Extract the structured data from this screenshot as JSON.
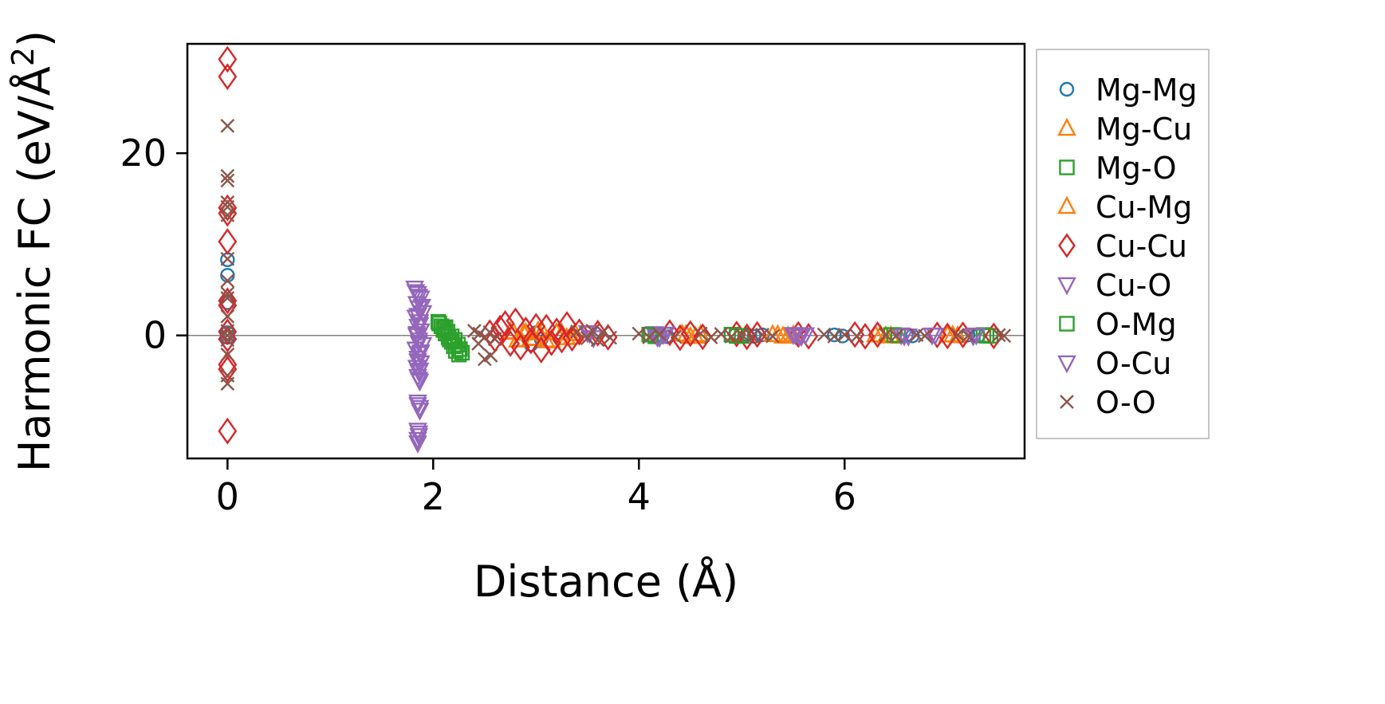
{
  "chart_data": {
    "type": "scatter",
    "title": "",
    "xlabel": "Distance (Å)",
    "ylabel": "Harmonic FC (eV/Å²)",
    "xlim": [
      -0.39,
      7.75
    ],
    "ylim": [
      -13.5,
      32
    ],
    "xticks": [
      0,
      2,
      4,
      6
    ],
    "yticks": [
      0,
      20
    ],
    "grid": false,
    "zero_line": true,
    "zero_line_color": "#808080",
    "axis_color": "#000000",
    "background": "#ffffff",
    "legend_position": "outside-right",
    "legend_border_color": "#b3b3b3",
    "series": [
      {
        "name": "Mg-Mg",
        "marker": "circle",
        "color": "#1f77b4",
        "size": 8,
        "points": [
          [
            0,
            8.3
          ],
          [
            0,
            6.6
          ],
          [
            0,
            3.6
          ],
          [
            0,
            0.3
          ],
          [
            0,
            -0.2
          ],
          [
            2.95,
            -1.0
          ],
          [
            3.0,
            0.3
          ],
          [
            3.05,
            -0.4
          ],
          [
            4.2,
            0.12
          ],
          [
            4.28,
            -0.15
          ],
          [
            5.05,
            0.1
          ],
          [
            5.12,
            -0.1
          ],
          [
            5.2,
            0.06
          ],
          [
            5.9,
            0.06
          ],
          [
            5.98,
            -0.06
          ],
          [
            6.6,
            0.05
          ],
          [
            6.66,
            -0.05
          ],
          [
            7.2,
            0.04
          ],
          [
            7.3,
            -0.04
          ]
        ]
      },
      {
        "name": "Mg-Cu",
        "marker": "triangle-up",
        "color": "#ff7f0e",
        "size": 9,
        "points": [
          [
            2.75,
            0.4
          ],
          [
            2.82,
            -0.5
          ],
          [
            2.88,
            0.25
          ],
          [
            2.95,
            -0.3
          ],
          [
            3.02,
            0.5
          ],
          [
            3.1,
            -0.6
          ],
          [
            3.2,
            0.3
          ],
          [
            3.3,
            -0.25
          ],
          [
            3.38,
            0.2
          ],
          [
            4.42,
            0.15
          ],
          [
            4.5,
            -0.12
          ],
          [
            4.6,
            0.1
          ],
          [
            5.3,
            0.1
          ],
          [
            5.4,
            -0.08
          ],
          [
            5.5,
            0.06
          ],
          [
            6.3,
            0.06
          ],
          [
            6.4,
            -0.05
          ],
          [
            7.0,
            0.05
          ],
          [
            7.1,
            -0.04
          ]
        ]
      },
      {
        "name": "Mg-O",
        "marker": "square",
        "color": "#2ca02c",
        "size": 9,
        "points": [
          [
            2.05,
            1.5
          ],
          [
            2.08,
            1.0
          ],
          [
            2.1,
            0.6
          ],
          [
            2.12,
            0.2
          ],
          [
            2.15,
            -0.2
          ],
          [
            2.18,
            -0.7
          ],
          [
            2.2,
            -1.2
          ],
          [
            2.22,
            -1.7
          ],
          [
            2.25,
            -2.1
          ],
          [
            2.12,
            0.9
          ],
          [
            2.16,
            -0.45
          ],
          [
            4.1,
            0.1
          ],
          [
            4.16,
            -0.1
          ],
          [
            4.9,
            0.08
          ],
          [
            5.0,
            -0.06
          ],
          [
            6.45,
            0.05
          ],
          [
            6.52,
            -0.05
          ],
          [
            7.35,
            0.05
          ],
          [
            7.42,
            -0.04
          ]
        ]
      },
      {
        "name": "Cu-Mg",
        "marker": "triangle-up",
        "color": "#ff7f0e",
        "size": 9,
        "points": [
          [
            2.78,
            0.35
          ],
          [
            2.85,
            -0.45
          ],
          [
            2.9,
            0.3
          ],
          [
            2.98,
            -0.35
          ],
          [
            3.06,
            0.45
          ],
          [
            3.15,
            -0.5
          ],
          [
            3.25,
            0.25
          ],
          [
            3.35,
            -0.2
          ],
          [
            4.46,
            0.12
          ],
          [
            4.55,
            -0.1
          ],
          [
            5.35,
            0.08
          ],
          [
            5.45,
            -0.07
          ],
          [
            6.35,
            0.05
          ],
          [
            6.45,
            -0.05
          ],
          [
            7.05,
            0.04
          ]
        ]
      },
      {
        "name": "Cu-Cu",
        "marker": "diamond",
        "color": "#d62728",
        "size": 11,
        "points": [
          [
            0,
            30.3
          ],
          [
            0,
            28.4
          ],
          [
            0,
            14.0
          ],
          [
            0,
            13.4
          ],
          [
            0,
            10.3
          ],
          [
            0,
            3.8
          ],
          [
            0,
            3.3
          ],
          [
            0,
            0.4
          ],
          [
            0,
            -0.4
          ],
          [
            0,
            -3.2
          ],
          [
            0,
            -3.7
          ],
          [
            0,
            -10.5
          ],
          [
            2.55,
            0.3
          ],
          [
            2.6,
            -0.4
          ],
          [
            2.65,
            0.8
          ],
          [
            2.7,
            1.3
          ],
          [
            2.75,
            -0.9
          ],
          [
            2.8,
            1.6
          ],
          [
            2.85,
            -1.3
          ],
          [
            2.9,
            0.6
          ],
          [
            2.95,
            -0.6
          ],
          [
            3.0,
            1.0
          ],
          [
            3.05,
            -1.6
          ],
          [
            3.1,
            0.9
          ],
          [
            3.15,
            -0.8
          ],
          [
            3.2,
            0.5
          ],
          [
            3.25,
            -0.5
          ],
          [
            3.3,
            1.2
          ],
          [
            3.35,
            -0.3
          ],
          [
            3.42,
            0.4
          ],
          [
            3.6,
            0.25
          ],
          [
            3.7,
            -0.2
          ],
          [
            4.3,
            0.3
          ],
          [
            4.4,
            -0.25
          ],
          [
            4.5,
            0.2
          ],
          [
            4.62,
            -0.15
          ],
          [
            4.95,
            0.15
          ],
          [
            5.05,
            -0.15
          ],
          [
            5.15,
            0.1
          ],
          [
            5.55,
            0.1
          ],
          [
            5.65,
            -0.1
          ],
          [
            6.1,
            0.1
          ],
          [
            6.2,
            -0.1
          ],
          [
            6.32,
            0.08
          ],
          [
            6.9,
            0.06
          ],
          [
            7.0,
            -0.06
          ],
          [
            7.15,
            0.06
          ],
          [
            7.45,
            -0.05
          ]
        ]
      },
      {
        "name": "Cu-O",
        "marker": "triangle-down",
        "color": "#9467bd",
        "size": 9,
        "points": [
          [
            1.82,
            5.2
          ],
          [
            1.85,
            4.6
          ],
          [
            1.88,
            4.1
          ],
          [
            1.84,
            3.5
          ],
          [
            1.86,
            3.0
          ],
          [
            1.9,
            2.5
          ],
          [
            1.83,
            2.0
          ],
          [
            1.87,
            1.5
          ],
          [
            1.85,
            1.0
          ],
          [
            1.88,
            0.5
          ],
          [
            1.84,
            0.0
          ],
          [
            1.86,
            -0.5
          ],
          [
            1.9,
            -1.0
          ],
          [
            1.83,
            -1.5
          ],
          [
            1.87,
            -2.0
          ],
          [
            1.85,
            -2.5
          ],
          [
            1.88,
            -3.0
          ],
          [
            1.84,
            -3.5
          ],
          [
            1.86,
            -4.0
          ],
          [
            1.85,
            -4.5
          ],
          [
            1.87,
            -5.0
          ],
          [
            1.85,
            -7.3
          ],
          [
            1.87,
            -7.9
          ],
          [
            1.85,
            -10.4
          ],
          [
            1.86,
            -11.0
          ],
          [
            1.85,
            -11.8
          ],
          [
            3.5,
            0.3
          ],
          [
            3.56,
            -0.25
          ],
          [
            4.15,
            0.2
          ],
          [
            4.2,
            -0.2
          ],
          [
            4.26,
            0.15
          ],
          [
            5.5,
            0.1
          ],
          [
            5.56,
            -0.1
          ],
          [
            5.62,
            0.08
          ],
          [
            6.55,
            0.06
          ],
          [
            6.62,
            -0.06
          ],
          [
            6.85,
            0.05
          ],
          [
            7.25,
            -0.05
          ]
        ]
      },
      {
        "name": "O-Mg",
        "marker": "square",
        "color": "#2ca02c",
        "size": 9,
        "points": [
          [
            2.06,
            1.3
          ],
          [
            2.1,
            0.8
          ],
          [
            2.14,
            0.4
          ],
          [
            2.18,
            -0.1
          ],
          [
            2.21,
            -0.5
          ],
          [
            2.24,
            -1.0
          ],
          [
            2.26,
            -1.5
          ],
          [
            2.28,
            -1.9
          ],
          [
            4.12,
            0.08
          ],
          [
            4.95,
            -0.06
          ],
          [
            6.48,
            0.05
          ],
          [
            7.38,
            -0.04
          ]
        ]
      },
      {
        "name": "O-Cu",
        "marker": "triangle-down",
        "color": "#9467bd",
        "size": 9,
        "points": [
          [
            1.83,
            4.8
          ],
          [
            1.86,
            4.3
          ],
          [
            1.89,
            3.2
          ],
          [
            1.85,
            2.2
          ],
          [
            1.87,
            1.2
          ],
          [
            1.84,
            0.2
          ],
          [
            1.86,
            -0.8
          ],
          [
            1.88,
            -1.8
          ],
          [
            1.85,
            -2.8
          ],
          [
            1.87,
            -3.8
          ],
          [
            1.86,
            -4.8
          ],
          [
            1.85,
            -7.6
          ],
          [
            1.87,
            -8.2
          ],
          [
            1.86,
            -10.7
          ],
          [
            1.85,
            -11.4
          ],
          [
            3.52,
            0.25
          ],
          [
            4.18,
            -0.18
          ],
          [
            4.24,
            0.12
          ],
          [
            5.52,
            0.09
          ],
          [
            5.58,
            -0.08
          ],
          [
            6.58,
            -0.05
          ],
          [
            6.88,
            0.04
          ],
          [
            7.28,
            0.05
          ]
        ]
      },
      {
        "name": "O-O",
        "marker": "x",
        "color": "#8c564b",
        "size": 8,
        "points": [
          [
            0,
            23.0
          ],
          [
            0,
            17.5
          ],
          [
            0,
            17.0
          ],
          [
            0,
            14.6
          ],
          [
            0,
            14.1
          ],
          [
            0,
            13.2
          ],
          [
            0,
            8.4
          ],
          [
            0,
            6.0
          ],
          [
            0,
            4.6
          ],
          [
            0,
            4.1
          ],
          [
            0,
            2.1
          ],
          [
            0,
            0.5
          ],
          [
            0,
            0.0
          ],
          [
            0,
            -0.5
          ],
          [
            0,
            -2.1
          ],
          [
            0,
            -4.4
          ],
          [
            0,
            -5.3
          ],
          [
            2.4,
            0.5
          ],
          [
            2.45,
            0.2
          ],
          [
            2.5,
            -0.2
          ],
          [
            2.55,
            0.35
          ],
          [
            2.6,
            -0.4
          ],
          [
            2.5,
            -2.6
          ],
          [
            2.56,
            -2.2
          ],
          [
            2.44,
            -0.9
          ],
          [
            3.4,
            0.4
          ],
          [
            3.5,
            -0.3
          ],
          [
            3.55,
            0.5
          ],
          [
            3.6,
            -0.5
          ],
          [
            3.65,
            0.35
          ],
          [
            3.72,
            -0.25
          ],
          [
            4.0,
            0.2
          ],
          [
            4.1,
            -0.2
          ],
          [
            4.2,
            0.15
          ],
          [
            4.35,
            -0.15
          ],
          [
            4.6,
            0.2
          ],
          [
            4.7,
            -0.2
          ],
          [
            4.8,
            0.15
          ],
          [
            4.9,
            -0.12
          ],
          [
            5.0,
            0.1
          ],
          [
            5.1,
            -0.1
          ],
          [
            5.2,
            0.08
          ],
          [
            5.3,
            -0.08
          ],
          [
            5.8,
            0.1
          ],
          [
            5.9,
            -0.1
          ],
          [
            6.0,
            0.08
          ],
          [
            6.12,
            -0.08
          ],
          [
            6.4,
            0.06
          ],
          [
            6.5,
            -0.06
          ],
          [
            6.7,
            0.05
          ],
          [
            6.78,
            -0.05
          ],
          [
            7.1,
            0.05
          ],
          [
            7.2,
            -0.05
          ],
          [
            7.5,
            0.04
          ],
          [
            7.55,
            -0.04
          ]
        ]
      }
    ]
  }
}
